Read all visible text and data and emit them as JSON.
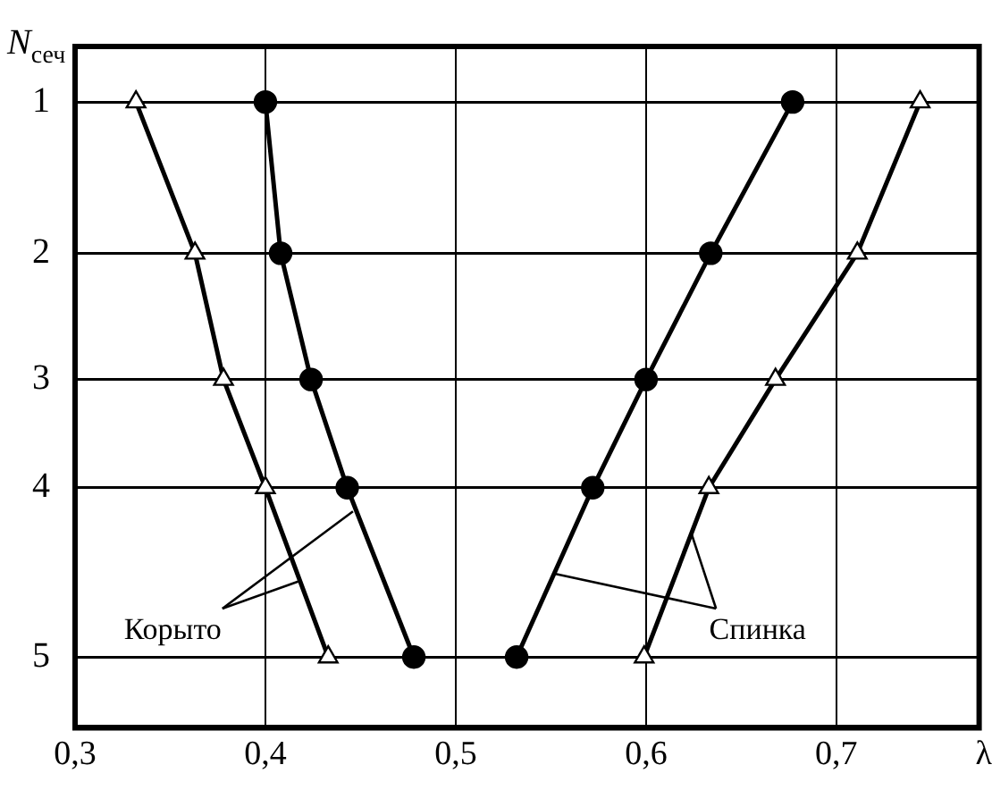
{
  "chart_data": {
    "type": "line",
    "xlabel": "λ",
    "ylabel": "N$_{сеч}$",
    "xlim": [
      0.3,
      0.775
    ],
    "xticks": [
      {
        "value": 0.3,
        "label": "0,3"
      },
      {
        "value": 0.4,
        "label": "0,4"
      },
      {
        "value": 0.5,
        "label": "0,5"
      },
      {
        "value": 0.6,
        "label": "0,6"
      },
      {
        "value": 0.7,
        "label": "0,7"
      }
    ],
    "ylim": [
      5.51,
      0.6
    ],
    "yticks": [
      {
        "value": 1,
        "label": "1"
      },
      {
        "value": 2.09,
        "label": "2"
      },
      {
        "value": 3,
        "label": "3"
      },
      {
        "value": 3.78,
        "label": "4"
      },
      {
        "value": 5,
        "label": "5"
      }
    ],
    "grid": true,
    "legend": false,
    "line_style": "solid",
    "series": [
      {
        "color": "#000000",
        "marker": "triangle",
        "x": [
          0.332,
          0.363,
          0.378,
          0.4,
          0.433
        ],
        "values": [
          1,
          2.09,
          3,
          3.78,
          5
        ]
      },
      {
        "color": "#000000",
        "marker": "circle",
        "x": [
          0.4,
          0.408,
          0.424,
          0.443,
          0.478
        ],
        "values": [
          1,
          2.09,
          3,
          3.78,
          5
        ]
      },
      {
        "color": "#000000",
        "marker": "circle",
        "x": [
          0.677,
          0.634,
          0.6,
          0.572,
          0.532
        ],
        "values": [
          1,
          2.09,
          3,
          3.78,
          5
        ]
      },
      {
        "color": "#000000",
        "marker": "triangle",
        "x": [
          0.744,
          0.711,
          0.668,
          0.633,
          0.599
        ],
        "values": [
          1,
          2.09,
          3,
          3.78,
          5
        ]
      }
    ],
    "annotations": [
      {
        "text": "Корыто",
        "x": 0.446,
        "y": 3.95
      },
      {
        "text": "Спинка",
        "x": 0.552,
        "y": 4.4
      }
    ]
  }
}
